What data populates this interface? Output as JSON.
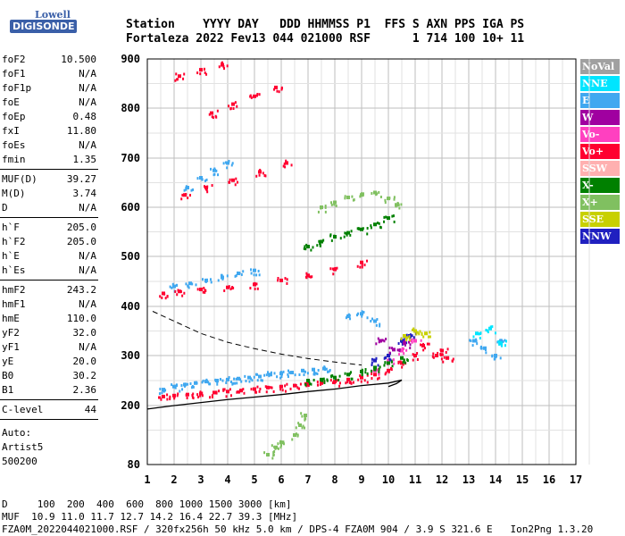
{
  "logo": {
    "top": "Lowell",
    "bottom": "DIGISONDE"
  },
  "header": {
    "line1": "Station    YYYY DAY   DDD HHMMSS P1  FFS S AXN PPS IGA PS",
    "line2": "Fortaleza 2022 Fev13 044 021000 RSF      1 714 100 10+ 11"
  },
  "params_a": [
    {
      "k": "foF2",
      "v": "10.500"
    },
    {
      "k": "foF1",
      "v": "N/A"
    },
    {
      "k": "foF1p",
      "v": "N/A"
    },
    {
      "k": "foE",
      "v": "N/A"
    },
    {
      "k": "foEp",
      "v": "0.48"
    },
    {
      "k": "fxI",
      "v": "11.80"
    },
    {
      "k": "foEs",
      "v": "N/A"
    },
    {
      "k": "fmin",
      "v": "1.35"
    }
  ],
  "params_b": [
    {
      "k": "MUF(D)",
      "v": "39.27"
    },
    {
      "k": "M(D)",
      "v": "3.74"
    },
    {
      "k": "D",
      "v": "N/A"
    }
  ],
  "params_c": [
    {
      "k": "h`F",
      "v": "205.0"
    },
    {
      "k": "h`F2",
      "v": "205.0"
    },
    {
      "k": "h`E",
      "v": "N/A"
    },
    {
      "k": "h`Es",
      "v": "N/A"
    }
  ],
  "params_d": [
    {
      "k": "hmF2",
      "v": "243.2"
    },
    {
      "k": "hmF1",
      "v": "N/A"
    },
    {
      "k": "hmE",
      "v": "110.0"
    },
    {
      "k": "yF2",
      "v": "32.0"
    },
    {
      "k": "yF1",
      "v": "N/A"
    },
    {
      "k": "yE",
      "v": "20.0"
    },
    {
      "k": "B0",
      "v": "30.2"
    },
    {
      "k": "B1",
      "v": "2.36"
    }
  ],
  "params_e": [
    {
      "k": "C-level",
      "v": "44"
    }
  ],
  "auto": {
    "label": "Auto:",
    "name": "Artist5",
    "code": "500200"
  },
  "legend": [
    {
      "label": "NoVal",
      "color": "#a0a0a0"
    },
    {
      "label": "NNE",
      "color": "#00e5ff"
    },
    {
      "label": "E",
      "color": "#40a8f0"
    },
    {
      "label": "W",
      "color": "#a000a0"
    },
    {
      "label": "Vo-",
      "color": "#ff40c0"
    },
    {
      "label": "Vo+",
      "color": "#ff0030"
    },
    {
      "label": "SSW",
      "color": "#ffb0b0"
    },
    {
      "label": "X-",
      "color": "#008000"
    },
    {
      "label": "X+",
      "color": "#80c060"
    },
    {
      "label": "SSE",
      "color": "#c8d000"
    },
    {
      "label": "NNW",
      "color": "#2020c0"
    }
  ],
  "footer": {
    "line1": "D     100  200  400  600  800 1000 1500 3000 [km]",
    "line2": "MUF  10.9 11.0 11.7 12.7 14.2 16.4 22.7 39.3 [MHz]",
    "line3": "FZA0M_2022044021000.RSF / 320fx256h 50 kHz 5.0 km / DPS-4 FZA0M 904 / 3.9 S 321.6 E   Ion2Png 1.3.20"
  },
  "chart_data": {
    "type": "scatter",
    "title": "",
    "xlabel": "",
    "ylabel": "",
    "xlim": [
      1,
      17
    ],
    "ylim": [
      80,
      900
    ],
    "x_ticks": [
      1,
      2,
      3,
      4,
      5,
      6,
      7,
      8,
      9,
      10,
      11,
      12,
      13,
      14,
      15,
      16,
      17
    ],
    "y_ticks": [
      80,
      200,
      300,
      400,
      500,
      600,
      700,
      800,
      900
    ],
    "grid": true,
    "series": [
      {
        "name": "E",
        "color": "#40a8f0",
        "points": [
          [
            1.6,
            232
          ],
          [
            2.0,
            238
          ],
          [
            2.4,
            242
          ],
          [
            2.8,
            245
          ],
          [
            3.2,
            248
          ],
          [
            3.6,
            250
          ],
          [
            4.0,
            252
          ],
          [
            4.4,
            254
          ],
          [
            4.8,
            256
          ],
          [
            5.2,
            258
          ],
          [
            5.6,
            262
          ],
          [
            6.0,
            264
          ],
          [
            6.4,
            266
          ],
          [
            6.8,
            270
          ],
          [
            7.2,
            272
          ],
          [
            7.6,
            274
          ],
          [
            2.0,
            440
          ],
          [
            2.6,
            446
          ],
          [
            3.2,
            452
          ],
          [
            3.8,
            458
          ],
          [
            4.4,
            466
          ],
          [
            5.0,
            472
          ],
          [
            2.5,
            640
          ],
          [
            3.0,
            660
          ],
          [
            3.5,
            675
          ],
          [
            4.0,
            690
          ],
          [
            8.5,
            380
          ],
          [
            9.0,
            385
          ],
          [
            9.5,
            370
          ],
          [
            13.2,
            330
          ],
          [
            13.6,
            315
          ],
          [
            14.0,
            300
          ],
          [
            14.2,
            330
          ]
        ]
      },
      {
        "name": "Vo+",
        "color": "#ff0030",
        "points": [
          [
            1.6,
            218
          ],
          [
            2.0,
            220
          ],
          [
            2.5,
            222
          ],
          [
            3.0,
            224
          ],
          [
            3.5,
            226
          ],
          [
            4.0,
            228
          ],
          [
            4.5,
            230
          ],
          [
            5.0,
            233
          ],
          [
            5.5,
            236
          ],
          [
            6.0,
            238
          ],
          [
            6.5,
            240
          ],
          [
            7.0,
            242
          ],
          [
            7.5,
            245
          ],
          [
            8.0,
            248
          ],
          [
            8.5,
            252
          ],
          [
            9.0,
            256
          ],
          [
            9.5,
            262
          ],
          [
            10.0,
            270
          ],
          [
            10.5,
            285
          ],
          [
            11.0,
            300
          ],
          [
            11.3,
            320
          ],
          [
            1.6,
            426
          ],
          [
            2.2,
            430
          ],
          [
            3.0,
            434
          ],
          [
            4.0,
            438
          ],
          [
            5.0,
            444
          ],
          [
            6.0,
            452
          ],
          [
            7.0,
            462
          ],
          [
            8.0,
            474
          ],
          [
            9.0,
            488
          ],
          [
            2.4,
            625
          ],
          [
            3.2,
            640
          ],
          [
            4.2,
            655
          ],
          [
            5.2,
            672
          ],
          [
            6.2,
            690
          ],
          [
            3.4,
            790
          ],
          [
            4.2,
            808
          ],
          [
            5.0,
            824
          ],
          [
            5.8,
            842
          ],
          [
            2.2,
            865
          ],
          [
            3.0,
            878
          ],
          [
            3.8,
            888
          ],
          [
            11.8,
            300
          ],
          [
            12.0,
            310
          ],
          [
            12.2,
            295
          ]
        ]
      },
      {
        "name": "Vo-",
        "color": "#ff40c0",
        "points": [
          [
            9.5,
            270
          ],
          [
            10.0,
            290
          ],
          [
            10.5,
            310
          ],
          [
            11.0,
            330
          ]
        ]
      },
      {
        "name": "X-",
        "color": "#008000",
        "points": [
          [
            7.0,
            250
          ],
          [
            7.5,
            252
          ],
          [
            8.0,
            256
          ],
          [
            8.5,
            262
          ],
          [
            9.0,
            268
          ],
          [
            9.5,
            276
          ],
          [
            10.0,
            285
          ],
          [
            10.5,
            295
          ],
          [
            7.0,
            520
          ],
          [
            7.5,
            530
          ],
          [
            8.0,
            540
          ],
          [
            8.5,
            548
          ],
          [
            9.0,
            555
          ],
          [
            9.5,
            565
          ],
          [
            10.0,
            578
          ]
        ]
      },
      {
        "name": "X+",
        "color": "#80c060",
        "points": [
          [
            6.5,
            140
          ],
          [
            6.7,
            160
          ],
          [
            6.9,
            180
          ],
          [
            5.5,
            100
          ],
          [
            5.8,
            115
          ],
          [
            6.0,
            125
          ],
          [
            7.5,
            600
          ],
          [
            8.0,
            610
          ],
          [
            8.5,
            620
          ],
          [
            9.0,
            625
          ],
          [
            9.5,
            630
          ],
          [
            10.0,
            618
          ],
          [
            10.3,
            605
          ]
        ]
      },
      {
        "name": "NNW",
        "color": "#2020c0",
        "points": [
          [
            9.5,
            290
          ],
          [
            10.0,
            300
          ],
          [
            10.5,
            330
          ],
          [
            10.8,
            340
          ]
        ]
      },
      {
        "name": "W",
        "color": "#a000a0",
        "points": [
          [
            9.7,
            330
          ],
          [
            10.2,
            312
          ],
          [
            10.6,
            325
          ]
        ]
      },
      {
        "name": "SSE",
        "color": "#c8d000",
        "points": [
          [
            10.6,
            340
          ],
          [
            11.0,
            350
          ],
          [
            11.4,
            345
          ]
        ]
      },
      {
        "name": "NNE",
        "color": "#00e5ff",
        "points": [
          [
            13.3,
            345
          ],
          [
            13.8,
            355
          ],
          [
            14.2,
            325
          ]
        ]
      }
    ],
    "profile": {
      "points": [
        [
          1.0,
          193
        ],
        [
          2.0,
          200
        ],
        [
          3.0,
          206
        ],
        [
          4.0,
          212
        ],
        [
          5.0,
          217
        ],
        [
          6.0,
          222
        ],
        [
          7.0,
          228
        ],
        [
          8.0,
          233
        ],
        [
          9.0,
          240
        ],
        [
          10.0,
          245
        ],
        [
          10.5,
          251
        ],
        [
          10.3,
          244
        ],
        [
          10.0,
          238
        ]
      ]
    },
    "muf_curve": {
      "points": [
        [
          1.2,
          390
        ],
        [
          2.0,
          370
        ],
        [
          3.0,
          345
        ],
        [
          4.0,
          327
        ],
        [
          5.0,
          314
        ],
        [
          6.0,
          303
        ],
        [
          7.0,
          294
        ],
        [
          8.0,
          287
        ],
        [
          9.0,
          281
        ]
      ]
    }
  }
}
